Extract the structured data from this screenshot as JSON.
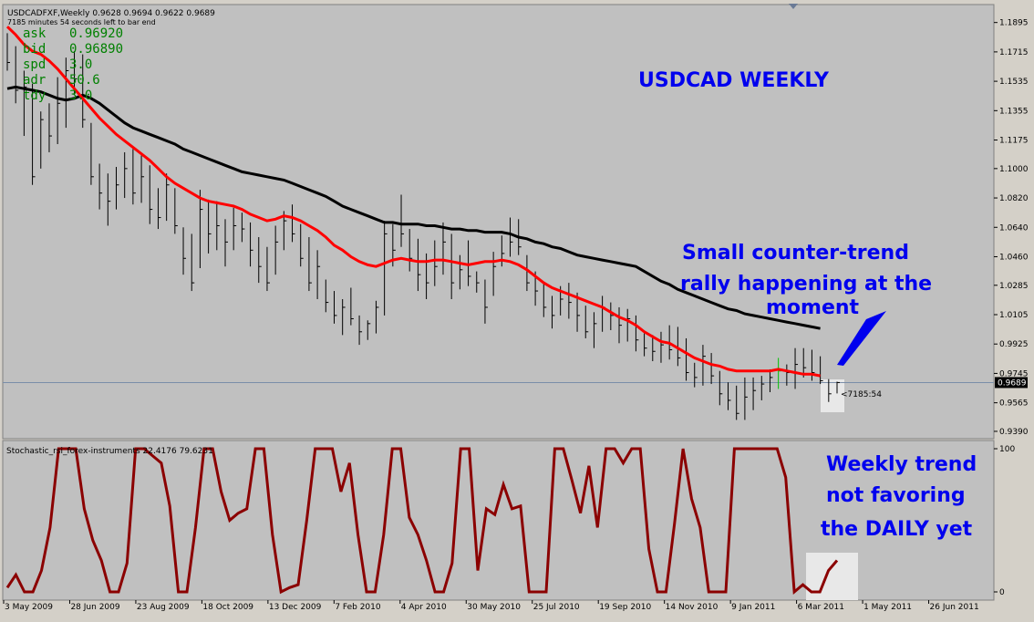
{
  "header": {
    "title_line": "USDCADFXF,Weekly  0.9628 0.9694 0.9622 0.9689",
    "timer_line": "7185 minutes 54 seconds left to bar end"
  },
  "info_panel": [
    {
      "label": "ask",
      "value": "0.96920"
    },
    {
      "label": "bid",
      "value": "0.96890"
    },
    {
      "label": "spd",
      "value": "3.0"
    },
    {
      "label": "adr",
      "value": "50.6"
    },
    {
      "label": "tdy",
      "value": "3.0"
    }
  ],
  "annotations": {
    "main_title": "USDCAD WEEKLY",
    "rally_lines": [
      "Small counter-trend",
      "rally happening at the",
      "moment"
    ],
    "weekly_lines": [
      "Weekly trend",
      "not favoring",
      "the DAILY yet"
    ]
  },
  "price_tag": "0.9689",
  "countdown_label": "<7185:54",
  "stoch_label": "Stochastic_rsi_forex-instruments 22.4176 79.6231",
  "colors": {
    "panel_bg": "#c0c0c0",
    "frame_bg": "#d4d0c8",
    "bar": "#000000",
    "sma_fast": "#ff0000",
    "sma_slow": "#000000",
    "oscillator": "#8b0000",
    "annotation": "#0000ee",
    "info_text": "#008000",
    "last_price_line": "#7a8ea8"
  },
  "chart_data": [
    {
      "type": "ohlc",
      "title": "USDCADFXF,Weekly",
      "y_ticks": [
        "1.1895",
        "1.1715",
        "1.1535",
        "1.1355",
        "1.1175",
        "1.1000",
        "1.0820",
        "1.0640",
        "1.0460",
        "1.0285",
        "1.0105",
        "0.9925",
        "0.9745",
        "0.9565",
        "0.9390"
      ],
      "ylim": [
        0.9345,
        1.2005
      ],
      "last_price": 0.9689,
      "x_ticks": [
        "3 May 2009",
        "28 Jun 2009",
        "23 Aug 2009",
        "18 Oct 2009",
        "13 Dec 2009",
        "7 Feb 2010",
        "4 Apr 2010",
        "30 May 2010",
        "25 Jul 2010",
        "19 Sep 2010",
        "14 Nov 2010",
        "9 Jan 2011",
        "6 Mar 2011",
        "1 May 2011",
        "26 Jun 2011"
      ],
      "bars": [
        [
          1.183,
          1.16,
          1.165
        ],
        [
          1.175,
          1.14,
          1.148
        ],
        [
          1.16,
          1.12,
          1.15
        ],
        [
          1.152,
          1.09,
          1.095
        ],
        [
          1.135,
          1.1,
          1.13
        ],
        [
          1.14,
          1.11,
          1.12
        ],
        [
          1.156,
          1.115,
          1.14
        ],
        [
          1.168,
          1.125,
          1.16
        ],
        [
          1.172,
          1.145,
          1.155
        ],
        [
          1.17,
          1.125,
          1.13
        ],
        [
          1.128,
          1.09,
          1.095
        ],
        [
          1.103,
          1.075,
          1.085
        ],
        [
          1.097,
          1.065,
          1.08
        ],
        [
          1.101,
          1.075,
          1.09
        ],
        [
          1.11,
          1.082,
          1.1
        ],
        [
          1.112,
          1.078,
          1.085
        ],
        [
          1.108,
          1.079,
          1.095
        ],
        [
          1.102,
          1.066,
          1.075
        ],
        [
          1.088,
          1.063,
          1.07
        ],
        [
          1.097,
          1.068,
          1.09
        ],
        [
          1.088,
          1.06,
          1.065
        ],
        [
          1.064,
          1.035,
          1.045
        ],
        [
          1.06,
          1.025,
          1.03
        ],
        [
          1.087,
          1.039,
          1.075
        ],
        [
          1.081,
          1.048,
          1.06
        ],
        [
          1.08,
          1.05,
          1.065
        ],
        [
          1.069,
          1.04,
          1.055
        ],
        [
          1.076,
          1.05,
          1.065
        ],
        [
          1.073,
          1.055,
          1.063
        ],
        [
          1.067,
          1.04,
          1.05
        ],
        [
          1.058,
          1.03,
          1.04
        ],
        [
          1.052,
          1.025,
          1.03
        ],
        [
          1.065,
          1.035,
          1.055
        ],
        [
          1.074,
          1.05,
          1.068
        ],
        [
          1.078,
          1.055,
          1.06
        ],
        [
          1.066,
          1.04,
          1.045
        ],
        [
          1.058,
          1.025,
          1.03
        ],
        [
          1.05,
          1.02,
          1.04
        ],
        [
          1.032,
          1.012,
          1.018
        ],
        [
          1.025,
          1.005,
          1.01
        ],
        [
          1.02,
          0.998,
          1.015
        ],
        [
          1.027,
          1.004,
          1.008
        ],
        [
          1.01,
          0.992,
          1.0
        ],
        [
          1.007,
          0.995,
          1.005
        ],
        [
          1.019,
          0.999,
          1.015
        ],
        [
          1.068,
          1.01,
          1.06
        ],
        [
          1.066,
          1.04,
          1.05
        ],
        [
          1.084,
          1.052,
          1.06
        ],
        [
          1.063,
          1.037,
          1.045
        ],
        [
          1.057,
          1.025,
          1.035
        ],
        [
          1.048,
          1.02,
          1.03
        ],
        [
          1.056,
          1.028,
          1.04
        ],
        [
          1.067,
          1.035,
          1.055
        ],
        [
          1.06,
          1.02,
          1.03
        ],
        [
          1.047,
          1.026,
          1.038
        ],
        [
          1.056,
          1.028,
          1.034
        ],
        [
          1.037,
          1.024,
          1.03
        ],
        [
          1.032,
          1.005,
          1.015
        ],
        [
          1.049,
          1.022,
          1.04
        ],
        [
          1.059,
          1.04,
          1.048
        ],
        [
          1.07,
          1.046,
          1.055
        ],
        [
          1.069,
          1.047,
          1.052
        ],
        [
          1.047,
          1.025,
          1.03
        ],
        [
          1.037,
          1.016,
          1.025
        ],
        [
          1.03,
          1.009,
          1.015
        ],
        [
          1.022,
          1.002,
          1.01
        ],
        [
          1.028,
          1.01,
          1.02
        ],
        [
          1.03,
          1.008,
          1.018
        ],
        [
          1.024,
          1.0,
          1.01
        ],
        [
          1.016,
          0.996,
          1.0
        ],
        [
          1.012,
          0.99,
          1.005
        ],
        [
          1.022,
          1.0,
          1.015
        ],
        [
          1.018,
          1.001,
          1.01
        ],
        [
          1.015,
          0.993,
          1.004
        ],
        [
          1.014,
          0.994,
          1.008
        ],
        [
          1.01,
          0.988,
          0.995
        ],
        [
          0.999,
          0.985,
          0.99
        ],
        [
          0.998,
          0.982,
          0.988
        ],
        [
          1.0,
          0.981,
          0.992
        ],
        [
          1.004,
          0.983,
          0.989
        ],
        [
          1.003,
          0.979,
          0.984
        ],
        [
          0.996,
          0.97,
          0.975
        ],
        [
          0.981,
          0.966,
          0.972
        ],
        [
          0.992,
          0.967,
          0.985
        ],
        [
          0.987,
          0.968,
          0.973
        ],
        [
          0.976,
          0.955,
          0.962
        ],
        [
          0.969,
          0.952,
          0.958
        ],
        [
          0.967,
          0.946,
          0.95
        ],
        [
          0.972,
          0.946,
          0.96
        ],
        [
          0.972,
          0.952,
          0.964
        ],
        [
          0.973,
          0.958,
          0.968
        ],
        [
          0.977,
          0.963,
          0.972
        ],
        [
          0.984,
          0.965,
          0.976
        ],
        [
          0.98,
          0.967,
          0.975
        ],
        [
          0.99,
          0.965,
          0.98
        ],
        [
          0.99,
          0.972,
          0.978
        ],
        [
          0.989,
          0.97,
          0.975
        ],
        [
          0.985,
          0.968,
          0.97
        ],
        [
          0.971,
          0.957,
          0.962
        ],
        [
          0.9694,
          0.9622,
          0.9689
        ]
      ],
      "highlight_bar_index": 92,
      "series": [
        {
          "name": "",
          "values": [
            1.187,
            1.182,
            1.176,
            1.172,
            1.17,
            1.166,
            1.161,
            1.155,
            1.149,
            1.143,
            1.137,
            1.131,
            1.126,
            1.121,
            1.117,
            1.113,
            1.109,
            1.105,
            1.1,
            1.095,
            1.091,
            1.088,
            1.085,
            1.082,
            1.08,
            1.079,
            1.078,
            1.077,
            1.075,
            1.072,
            1.07,
            1.068,
            1.069,
            1.071,
            1.07,
            1.068,
            1.065,
            1.062,
            1.058,
            1.053,
            1.05,
            1.046,
            1.043,
            1.041,
            1.04,
            1.042,
            1.044,
            1.045,
            1.044,
            1.043,
            1.043,
            1.044,
            1.044,
            1.043,
            1.042,
            1.041,
            1.042,
            1.043,
            1.043,
            1.044,
            1.043,
            1.041,
            1.038,
            1.034,
            1.03,
            1.027,
            1.025,
            1.023,
            1.021,
            1.019,
            1.017,
            1.015,
            1.012,
            1.009,
            1.007,
            1.004,
            1.0,
            0.997,
            0.994,
            0.993,
            0.99,
            0.987,
            0.984,
            0.982,
            0.98,
            0.979,
            0.977,
            0.976,
            0.976,
            0.976,
            0.976,
            0.976,
            0.977,
            0.976,
            0.975,
            0.974,
            0.974,
            0.973
          ]
        },
        {
          "name": "",
          "values": [
            1.149,
            1.15,
            1.149,
            1.148,
            1.147,
            1.145,
            1.143,
            1.142,
            1.143,
            1.145,
            1.143,
            1.14,
            1.136,
            1.132,
            1.128,
            1.125,
            1.123,
            1.121,
            1.119,
            1.117,
            1.115,
            1.112,
            1.11,
            1.108,
            1.106,
            1.104,
            1.102,
            1.1,
            1.098,
            1.097,
            1.096,
            1.095,
            1.094,
            1.093,
            1.091,
            1.089,
            1.087,
            1.085,
            1.083,
            1.08,
            1.077,
            1.075,
            1.073,
            1.071,
            1.069,
            1.067,
            1.067,
            1.066,
            1.066,
            1.066,
            1.065,
            1.065,
            1.064,
            1.063,
            1.063,
            1.062,
            1.062,
            1.061,
            1.061,
            1.061,
            1.06,
            1.058,
            1.057,
            1.055,
            1.054,
            1.052,
            1.051,
            1.049,
            1.047,
            1.046,
            1.045,
            1.044,
            1.043,
            1.042,
            1.041,
            1.04,
            1.037,
            1.034,
            1.031,
            1.029,
            1.026,
            1.024,
            1.022,
            1.02,
            1.018,
            1.016,
            1.014,
            1.013,
            1.011,
            1.01,
            1.009,
            1.008,
            1.007,
            1.006,
            1.005,
            1.004,
            1.003,
            1.002
          ]
        }
      ]
    },
    {
      "type": "line",
      "title": "Stochastic_rsi_forex-instruments",
      "ylim": [
        0,
        100
      ],
      "y_ticks": [
        "100",
        "0"
      ],
      "series": [
        {
          "name": "Stochastic_rsi_forex-instruments",
          "values": [
            3,
            12,
            0,
            0,
            15,
            45,
            100,
            100,
            100,
            58,
            36,
            22,
            0,
            0,
            20,
            100,
            100,
            95,
            90,
            60,
            0,
            0,
            45,
            100,
            100,
            70,
            50,
            55,
            58,
            100,
            100,
            40,
            0,
            3,
            5,
            50,
            100,
            100,
            100,
            70,
            90,
            40,
            0,
            0,
            40,
            100,
            100,
            52,
            40,
            22,
            0,
            0,
            20,
            100,
            100,
            15,
            58,
            54,
            75,
            58,
            60,
            0,
            0,
            0,
            100,
            100,
            78,
            55,
            88,
            45,
            100,
            100,
            90,
            100,
            100,
            30,
            0,
            0,
            48,
            100,
            65,
            45,
            0,
            0,
            0,
            100,
            100,
            100,
            100,
            100,
            100,
            80,
            0,
            5,
            0,
            0,
            15,
            22
          ]
        }
      ]
    }
  ]
}
